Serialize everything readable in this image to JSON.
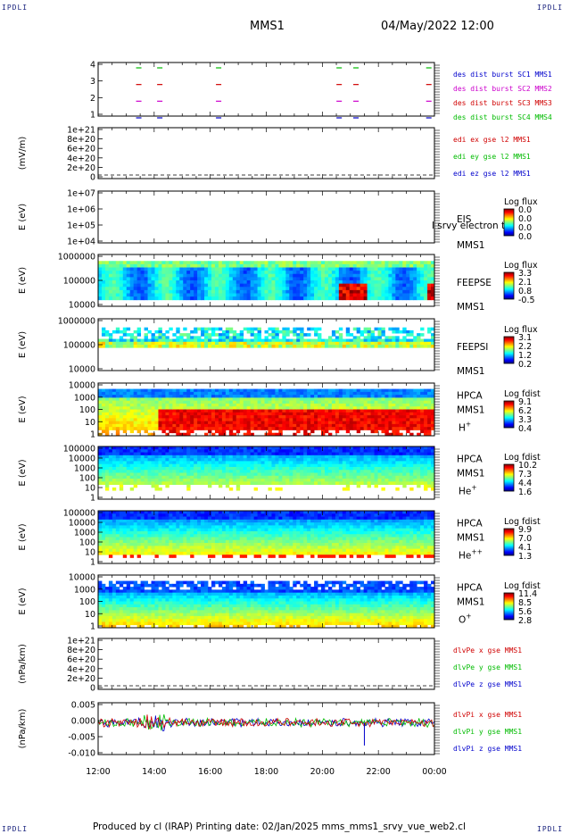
{
  "header": {
    "corner_label": "IPDLI",
    "spacecraft": "MMS1",
    "datetime": "04/May/2022 12:00"
  },
  "footer": {
    "text": "Produced by cl (IRAP)   Printing date: 02/Jan/2025   mms_mms1_srvy_vue_web2.cl"
  },
  "colors": {
    "red": "#d00000",
    "magenta": "#cc00cc",
    "green": "#00bb00",
    "blue": "#0000cc"
  },
  "chart_data": {
    "type": "multi-panel time series / spectrogram",
    "x_ticks": [
      "12:00",
      "14:00",
      "16:00",
      "18:00",
      "20:00",
      "22:00",
      "00:00"
    ],
    "x_range_hours": [
      12,
      24
    ],
    "panels": [
      {
        "id": "burst",
        "type": "scatter",
        "ylabel": "",
        "ticks": [
          "4",
          "3",
          "2",
          "1"
        ],
        "legend": [
          "des dist burst SC1 MMS1",
          "des dist burst SC2 MMS2",
          "des dist burst SC3 MMS3",
          "des dist burst SC4 MMS4"
        ],
        "burst_times_hours": [
          13.45,
          14.2,
          16.3,
          20.6,
          21.2,
          23.8
        ],
        "lanes": [
          {
            "level": 4,
            "color": "green"
          },
          {
            "level": 3,
            "color": "red"
          },
          {
            "level": 2,
            "color": "magenta"
          },
          {
            "level": 1,
            "color": "blue"
          }
        ]
      },
      {
        "id": "edi",
        "type": "line",
        "ylabel": "(mV/m)",
        "ticks": [
          "1e+21",
          "8e+20",
          "6e+20",
          "4e+20",
          "2e+20",
          "0"
        ],
        "legend": [
          {
            "text": "edi ex gse l2 MMS1",
            "color": "red"
          },
          {
            "text": "edi ey gse l2 MMS1",
            "color": "green"
          },
          {
            "text": "edi ez gse l2 MMS1",
            "color": "blue"
          }
        ]
      },
      {
        "id": "eis",
        "type": "heatmap",
        "ylabel": "E (eV)",
        "ticks": [
          "1e+07",
          "1e+06",
          "1e+05",
          "1e+04"
        ],
        "side_labels": [
          "EIS",
          "MMS1"
        ],
        "overlay_text": "l srvy electron to",
        "colorbar": {
          "title": "Log flux",
          "values": [
            "0.0",
            "0.0",
            "0.0",
            "0.0"
          ]
        }
      },
      {
        "id": "feepse",
        "type": "heatmap",
        "ylabel": "E (eV)",
        "ticks": [
          "1000000",
          "100000",
          "10000"
        ],
        "side_labels": [
          "FEEPSE",
          "MMS1"
        ],
        "colorbar": {
          "title": "Log flux",
          "values": [
            "3.3",
            "2.1",
            "0.8",
            "-0.5"
          ]
        }
      },
      {
        "id": "feepsi",
        "type": "heatmap",
        "ylabel": "E (eV)",
        "ticks": [
          "1000000",
          "100000",
          "10000"
        ],
        "side_labels": [
          "FEEPSI",
          "MMS1"
        ],
        "colorbar": {
          "title": "Log flux",
          "values": [
            "3.1",
            "2.2",
            "1.2",
            "0.2"
          ]
        }
      },
      {
        "id": "hpca_h",
        "type": "heatmap",
        "ylabel": "E (eV)",
        "ticks": [
          "10000",
          "1000",
          "100",
          "10",
          "1"
        ],
        "side_labels": [
          "HPCA",
          "MMS1"
        ],
        "species": {
          "base": "H",
          "sup": "+"
        },
        "colorbar": {
          "title": "Log fdist",
          "values": [
            "9.1",
            "6.2",
            "3.3",
            "0.4"
          ]
        }
      },
      {
        "id": "hpca_he1",
        "type": "heatmap",
        "ylabel": "E (eV)",
        "ticks": [
          "100000",
          "10000",
          "1000",
          "100",
          "10",
          "1"
        ],
        "side_labels": [
          "HPCA",
          "MMS1"
        ],
        "species": {
          "base": "He",
          "sup": "+"
        },
        "colorbar": {
          "title": "Log fdist",
          "values": [
            "10.2",
            "7.3",
            "4.4",
            "1.6"
          ]
        }
      },
      {
        "id": "hpca_he2",
        "type": "heatmap",
        "ylabel": "E (eV)",
        "ticks": [
          "100000",
          "10000",
          "1000",
          "100",
          "10",
          "1"
        ],
        "side_labels": [
          "HPCA",
          "MMS1"
        ],
        "species": {
          "base": "He",
          "sup": "++"
        },
        "colorbar": {
          "title": "Log fdist",
          "values": [
            "9.9",
            "7.0",
            "4.1",
            "1.3"
          ]
        }
      },
      {
        "id": "hpca_o",
        "type": "heatmap",
        "ylabel": "E (eV)",
        "ticks": [
          "10000",
          "1000",
          "100",
          "10",
          "1"
        ],
        "side_labels": [
          "HPCA",
          "MMS1"
        ],
        "species": {
          "base": "O",
          "sup": "+"
        },
        "colorbar": {
          "title": "Log fdist",
          "values": [
            "11.4",
            "8.5",
            "5.6",
            "2.8"
          ]
        }
      },
      {
        "id": "dlvpe",
        "type": "line",
        "ylabel": "(nPa/km)",
        "ticks": [
          "1e+21",
          "8e+20",
          "6e+20",
          "4e+20",
          "2e+20",
          "0"
        ],
        "legend": [
          {
            "text": "dlvPe x gse MMS1",
            "color": "red"
          },
          {
            "text": "dlvPe y gse MMS1",
            "color": "green"
          },
          {
            "text": "dlvPe z gse MMS1",
            "color": "blue"
          }
        ]
      },
      {
        "id": "dlvpi",
        "type": "line",
        "ylabel": "(nPa/km)",
        "ticks": [
          "0.005",
          "0.000",
          "-0.005",
          "-0.010"
        ],
        "ylim": [
          -0.0125,
          0.0075
        ],
        "legend": [
          {
            "text": "dlvPi x gse MMS1",
            "color": "red"
          },
          {
            "text": "dlvPi y gse MMS1",
            "color": "green"
          },
          {
            "text": "dlvPi z gse MMS1",
            "color": "blue"
          }
        ]
      }
    ]
  }
}
